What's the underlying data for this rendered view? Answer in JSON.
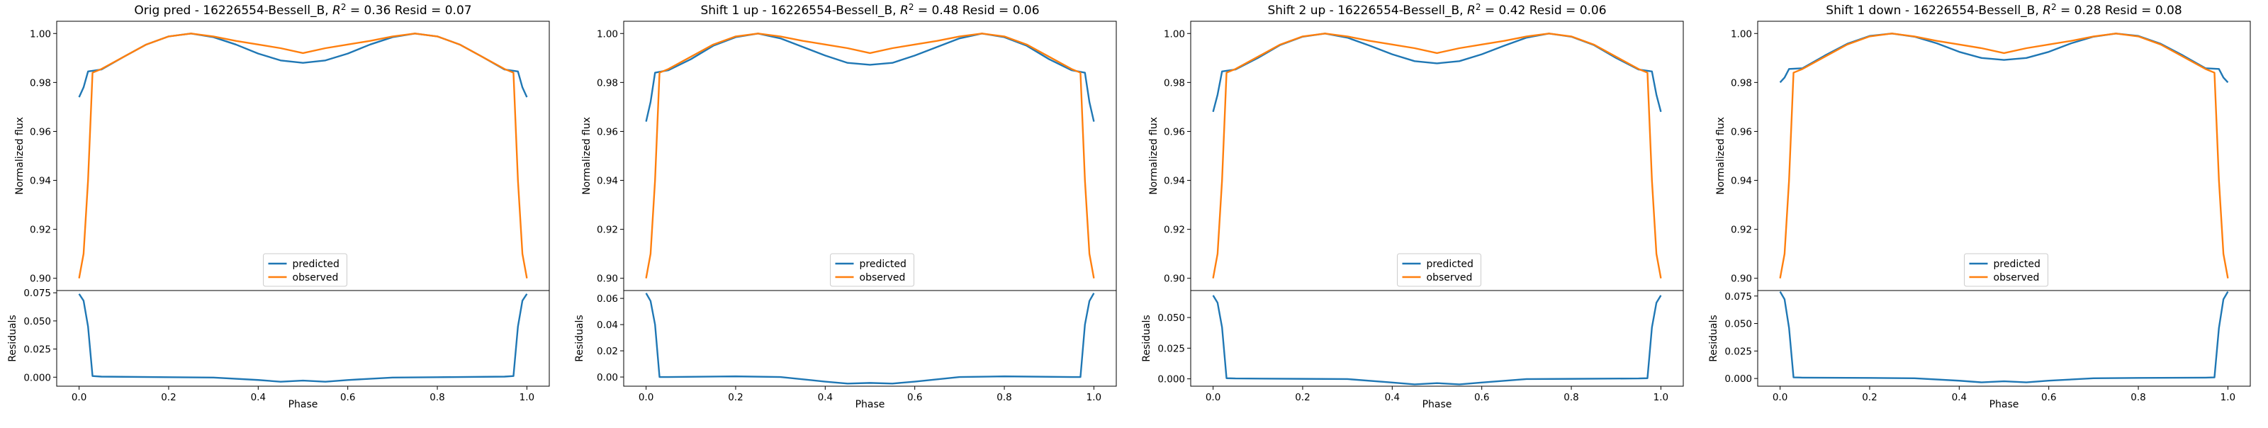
{
  "figure": {
    "shared": {
      "x_label": "Phase",
      "y_label_top": "Normalized flux",
      "y_label_bottom": "Residuals",
      "legend_labels": [
        "predicted",
        "observed"
      ],
      "legend_placement": "lower-center",
      "colors": {
        "predicted": "#1f77b4",
        "observed": "#ff7f0e"
      }
    }
  },
  "chart_data": [
    {
      "type": "line",
      "title": "Orig pred - 16226554-Bessell_B, $R^2 = 0.36$ Resid = 0.07",
      "title_parts": {
        "prefix": "Orig pred - 16226554-Bessell_B, ",
        "r2_symbol": "R",
        "r2_sup": "2",
        "rest": " = 0.36 Resid = 0.07"
      },
      "xlabel": "Phase",
      "ylabel": "Normalized flux",
      "xlim": [
        -0.05,
        1.05
      ],
      "ylim": [
        0.895,
        1.005
      ],
      "x_ticks": [
        "0.0",
        "0.2",
        "0.4",
        "0.6",
        "0.8",
        "1.0"
      ],
      "y_ticks": [
        "0.90",
        "0.92",
        "0.94",
        "0.96",
        "0.98",
        "1.00"
      ],
      "series": [
        {
          "name": "predicted",
          "x": [
            0,
            0.01,
            0.02,
            0.05,
            0.1,
            0.15,
            0.2,
            0.25,
            0.3,
            0.35,
            0.4,
            0.45,
            0.5,
            0.55,
            0.6,
            0.65,
            0.7,
            0.75,
            0.8,
            0.85,
            0.9,
            0.95,
            0.98,
            0.99,
            1.0
          ],
          "y": [
            0.974,
            0.978,
            0.9845,
            0.9853,
            0.9905,
            0.9955,
            0.9988,
            1.0,
            0.9985,
            0.9955,
            0.9918,
            0.989,
            0.988,
            0.989,
            0.9918,
            0.9955,
            0.9985,
            1.0,
            0.9988,
            0.9955,
            0.9905,
            0.9853,
            0.9845,
            0.978,
            0.974
          ]
        },
        {
          "name": "observed",
          "x": [
            0,
            0.01,
            0.02,
            0.03,
            0.05,
            0.1,
            0.15,
            0.2,
            0.25,
            0.3,
            0.35,
            0.4,
            0.45,
            0.5,
            0.55,
            0.6,
            0.65,
            0.7,
            0.75,
            0.8,
            0.85,
            0.9,
            0.95,
            0.97,
            0.98,
            0.99,
            1.0
          ],
          "y": [
            0.9,
            0.91,
            0.94,
            0.984,
            0.9855,
            0.9905,
            0.9955,
            0.9988,
            1.0,
            0.9988,
            0.997,
            0.9955,
            0.994,
            0.992,
            0.994,
            0.9955,
            0.997,
            0.9988,
            1.0,
            0.9988,
            0.9955,
            0.9905,
            0.9855,
            0.984,
            0.94,
            0.91,
            0.9
          ]
        }
      ],
      "residuals": {
        "ylabel": "Residuals",
        "ylim": [
          -0.008,
          0.077
        ],
        "y_ticks": [
          "0.000",
          "0.025",
          "0.050",
          "0.075"
        ],
        "x": [
          0,
          0.01,
          0.02,
          0.03,
          0.05,
          0.2,
          0.3,
          0.4,
          0.45,
          0.5,
          0.55,
          0.6,
          0.7,
          0.8,
          0.95,
          0.97,
          0.98,
          0.99,
          1.0
        ],
        "y": [
          0.074,
          0.068,
          0.045,
          0.001,
          0.0005,
          0.0,
          -0.0003,
          -0.0025,
          -0.004,
          -0.003,
          -0.004,
          -0.0025,
          -0.0003,
          0.0,
          0.0005,
          0.001,
          0.045,
          0.068,
          0.074
        ]
      }
    },
    {
      "type": "line",
      "title": "Shift 1 up - 16226554-Bessell_B, $R^2 = 0.48$ Resid = 0.06",
      "title_parts": {
        "prefix": "Shift 1 up - 16226554-Bessell_B, ",
        "r2_symbol": "R",
        "r2_sup": "2",
        "rest": " = 0.48 Resid = 0.06"
      },
      "xlabel": "Phase",
      "ylabel": "Normalized flux",
      "xlim": [
        -0.05,
        1.05
      ],
      "ylim": [
        0.895,
        1.005
      ],
      "x_ticks": [
        "0.0",
        "0.2",
        "0.4",
        "0.6",
        "0.8",
        "1.0"
      ],
      "y_ticks": [
        "0.90",
        "0.92",
        "0.94",
        "0.96",
        "0.98",
        "1.00"
      ],
      "series": [
        {
          "name": "predicted",
          "x": [
            0,
            0.01,
            0.02,
            0.05,
            0.1,
            0.15,
            0.2,
            0.25,
            0.3,
            0.35,
            0.4,
            0.45,
            0.5,
            0.55,
            0.6,
            0.65,
            0.7,
            0.75,
            0.8,
            0.85,
            0.9,
            0.95,
            0.98,
            0.99,
            1.0
          ],
          "y": [
            0.964,
            0.972,
            0.984,
            0.985,
            0.9895,
            0.995,
            0.9985,
            1.0,
            0.998,
            0.9945,
            0.991,
            0.988,
            0.9872,
            0.988,
            0.991,
            0.9945,
            0.998,
            1.0,
            0.9985,
            0.995,
            0.9895,
            0.985,
            0.984,
            0.972,
            0.964
          ]
        },
        {
          "name": "observed",
          "x": [
            0,
            0.01,
            0.02,
            0.03,
            0.05,
            0.1,
            0.15,
            0.2,
            0.25,
            0.3,
            0.35,
            0.4,
            0.45,
            0.5,
            0.55,
            0.6,
            0.65,
            0.7,
            0.75,
            0.8,
            0.85,
            0.9,
            0.95,
            0.97,
            0.98,
            0.99,
            1.0
          ],
          "y": [
            0.9,
            0.91,
            0.94,
            0.984,
            0.9855,
            0.9905,
            0.9955,
            0.9988,
            1.0,
            0.9988,
            0.997,
            0.9955,
            0.994,
            0.992,
            0.994,
            0.9955,
            0.997,
            0.9988,
            1.0,
            0.9988,
            0.9955,
            0.9905,
            0.9855,
            0.984,
            0.94,
            0.91,
            0.9
          ]
        }
      ],
      "residuals": {
        "ylabel": "Residuals",
        "ylim": [
          -0.007,
          0.066
        ],
        "y_ticks": [
          "0.00",
          "0.02",
          "0.04",
          "0.06"
        ],
        "x": [
          0,
          0.01,
          0.02,
          0.03,
          0.05,
          0.2,
          0.3,
          0.4,
          0.45,
          0.5,
          0.55,
          0.6,
          0.7,
          0.8,
          0.95,
          0.97,
          0.98,
          0.99,
          1.0
        ],
        "y": [
          0.064,
          0.058,
          0.04,
          0.0,
          0.0,
          0.0005,
          0.0,
          -0.0035,
          -0.005,
          -0.0045,
          -0.005,
          -0.0035,
          0.0,
          0.0005,
          0.0,
          0.0,
          0.04,
          0.058,
          0.064
        ]
      }
    },
    {
      "type": "line",
      "title": "Shift 2 up - 16226554-Bessell_B, $R^2 = 0.42$ Resid = 0.06",
      "title_parts": {
        "prefix": "Shift 2 up - 16226554-Bessell_B, ",
        "r2_symbol": "R",
        "r2_sup": "2",
        "rest": " = 0.42 Resid = 0.06"
      },
      "xlabel": "Phase",
      "ylabel": "Normalized flux",
      "xlim": [
        -0.05,
        1.05
      ],
      "ylim": [
        0.895,
        1.005
      ],
      "x_ticks": [
        "0.0",
        "0.2",
        "0.4",
        "0.6",
        "0.8",
        "1.0"
      ],
      "y_ticks": [
        "0.90",
        "0.92",
        "0.94",
        "0.96",
        "0.98",
        "1.00"
      ],
      "series": [
        {
          "name": "predicted",
          "x": [
            0,
            0.01,
            0.02,
            0.05,
            0.1,
            0.15,
            0.2,
            0.25,
            0.3,
            0.35,
            0.4,
            0.45,
            0.5,
            0.55,
            0.6,
            0.65,
            0.7,
            0.75,
            0.8,
            0.85,
            0.9,
            0.95,
            0.98,
            0.99,
            1.0
          ],
          "y": [
            0.968,
            0.975,
            0.9845,
            0.9853,
            0.99,
            0.9953,
            0.9987,
            1.0,
            0.9983,
            0.995,
            0.9915,
            0.9887,
            0.9878,
            0.9887,
            0.9915,
            0.995,
            0.9983,
            1.0,
            0.9987,
            0.9953,
            0.99,
            0.9853,
            0.9845,
            0.975,
            0.968
          ]
        },
        {
          "name": "observed",
          "x": [
            0,
            0.01,
            0.02,
            0.03,
            0.05,
            0.1,
            0.15,
            0.2,
            0.25,
            0.3,
            0.35,
            0.4,
            0.45,
            0.5,
            0.55,
            0.6,
            0.65,
            0.7,
            0.75,
            0.8,
            0.85,
            0.9,
            0.95,
            0.97,
            0.98,
            0.99,
            1.0
          ],
          "y": [
            0.9,
            0.91,
            0.94,
            0.984,
            0.9855,
            0.9905,
            0.9955,
            0.9988,
            1.0,
            0.9988,
            0.997,
            0.9955,
            0.994,
            0.992,
            0.994,
            0.9955,
            0.997,
            0.9988,
            1.0,
            0.9988,
            0.9955,
            0.9905,
            0.9855,
            0.984,
            0.94,
            0.91,
            0.9
          ]
        }
      ],
      "residuals": {
        "ylabel": "Residuals",
        "ylim": [
          -0.006,
          0.072
        ],
        "y_ticks": [
          "0.000",
          "0.025",
          "0.050"
        ],
        "x": [
          0,
          0.01,
          0.02,
          0.03,
          0.05,
          0.2,
          0.3,
          0.4,
          0.45,
          0.5,
          0.55,
          0.6,
          0.7,
          0.8,
          0.95,
          0.97,
          0.98,
          0.99,
          1.0
        ],
        "y": [
          0.068,
          0.062,
          0.042,
          0.0005,
          0.0003,
          0.0,
          -0.0002,
          -0.003,
          -0.0045,
          -0.0035,
          -0.0045,
          -0.003,
          -0.0002,
          0.0,
          0.0003,
          0.0005,
          0.042,
          0.062,
          0.068
        ]
      }
    },
    {
      "type": "line",
      "title": "Shift 1 down - 16226554-Bessell_B, $R^2 = 0.28$ Resid = 0.08",
      "title_parts": {
        "prefix": "Shift 1 down - 16226554-Bessell_B, ",
        "r2_symbol": "R",
        "r2_sup": "2",
        "rest": " = 0.28 Resid = 0.08"
      },
      "xlabel": "Phase",
      "ylabel": "Normalized flux",
      "xlim": [
        -0.05,
        1.05
      ],
      "ylim": [
        0.895,
        1.005
      ],
      "x_ticks": [
        "0.0",
        "0.2",
        "0.4",
        "0.6",
        "0.8",
        "1.0"
      ],
      "y_ticks": [
        "0.90",
        "0.92",
        "0.94",
        "0.96",
        "0.98",
        "1.00"
      ],
      "series": [
        {
          "name": "predicted",
          "x": [
            0,
            0.01,
            0.02,
            0.05,
            0.1,
            0.15,
            0.2,
            0.25,
            0.3,
            0.35,
            0.4,
            0.45,
            0.5,
            0.55,
            0.6,
            0.65,
            0.7,
            0.75,
            0.8,
            0.85,
            0.9,
            0.95,
            0.98,
            0.99,
            1.0
          ],
          "y": [
            0.98,
            0.982,
            0.9855,
            0.9858,
            0.991,
            0.9958,
            0.999,
            1.0,
            0.9987,
            0.996,
            0.9925,
            0.99,
            0.9892,
            0.99,
            0.9925,
            0.996,
            0.9987,
            1.0,
            0.999,
            0.9958,
            0.991,
            0.9858,
            0.9855,
            0.982,
            0.98
          ]
        },
        {
          "name": "observed",
          "x": [
            0,
            0.01,
            0.02,
            0.03,
            0.05,
            0.1,
            0.15,
            0.2,
            0.25,
            0.3,
            0.35,
            0.4,
            0.45,
            0.5,
            0.55,
            0.6,
            0.65,
            0.7,
            0.75,
            0.8,
            0.85,
            0.9,
            0.95,
            0.97,
            0.98,
            0.99,
            1.0
          ],
          "y": [
            0.9,
            0.91,
            0.94,
            0.984,
            0.9855,
            0.9905,
            0.9955,
            0.9988,
            1.0,
            0.9988,
            0.997,
            0.9955,
            0.994,
            0.992,
            0.994,
            0.9955,
            0.997,
            0.9988,
            1.0,
            0.9988,
            0.9955,
            0.9905,
            0.9855,
            0.984,
            0.94,
            0.91,
            0.9
          ]
        }
      ],
      "residuals": {
        "ylabel": "Residuals",
        "ylim": [
          -0.007,
          0.08
        ],
        "y_ticks": [
          "0.000",
          "0.025",
          "0.050",
          "0.075"
        ],
        "x": [
          0,
          0.01,
          0.02,
          0.03,
          0.05,
          0.2,
          0.3,
          0.4,
          0.45,
          0.5,
          0.55,
          0.6,
          0.7,
          0.8,
          0.95,
          0.97,
          0.98,
          0.99,
          1.0
        ],
        "y": [
          0.079,
          0.072,
          0.046,
          0.001,
          0.0008,
          0.0005,
          0.0002,
          -0.002,
          -0.0035,
          -0.0025,
          -0.0035,
          -0.002,
          0.0002,
          0.0005,
          0.0008,
          0.001,
          0.046,
          0.072,
          0.079
        ]
      }
    }
  ]
}
